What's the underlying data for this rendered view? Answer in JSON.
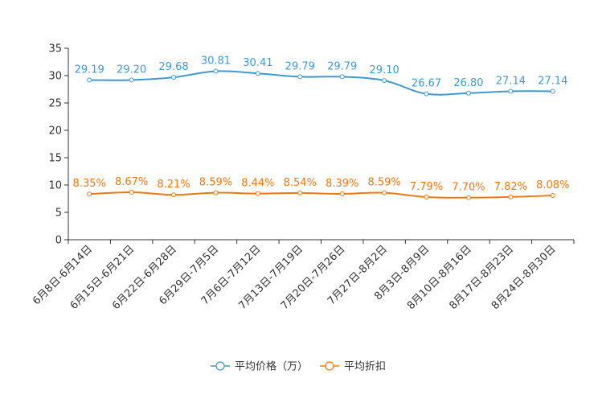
{
  "chart_data": {
    "type": "line",
    "categories": [
      "6月8日-6月14日",
      "6月15日-6月21日",
      "6月22日-6月28日",
      "6月29日-7月5日",
      "7月6日-7月12日",
      "7月13日-7月19日",
      "7月20日-7月26日",
      "7月27日-8月2日",
      "8月3日-8月9日",
      "8月10日-8月16日",
      "8月17日-8月23日",
      "8月24日-8月30日"
    ],
    "ylim": [
      0,
      35
    ],
    "yticks": [
      0,
      5,
      10,
      15,
      20,
      25,
      30,
      35
    ],
    "series": [
      {
        "name": "平均价格（万）",
        "color": "#3d9ad1",
        "values": [
          29.19,
          29.2,
          29.68,
          30.81,
          30.41,
          29.79,
          29.79,
          29.1,
          26.67,
          26.8,
          27.14,
          27.14
        ],
        "labels": [
          "29.19",
          "29.20",
          "29.68",
          "30.81",
          "30.41",
          "29.79",
          "29.79",
          "29.10",
          "26.67",
          "26.80",
          "27.14",
          "27.14"
        ]
      },
      {
        "name": "平均折扣",
        "color": "#f0780f",
        "values": [
          8.35,
          8.67,
          8.21,
          8.59,
          8.44,
          8.54,
          8.39,
          8.59,
          7.79,
          7.7,
          7.82,
          8.08
        ],
        "labels": [
          "8.35%",
          "8.67%",
          "8.21%",
          "8.59%",
          "8.44%",
          "8.54%",
          "8.39%",
          "8.59%",
          "7.79%",
          "7.70%",
          "7.82%",
          "8.08%"
        ]
      }
    ],
    "legend": "bottom-center",
    "grid": false
  }
}
